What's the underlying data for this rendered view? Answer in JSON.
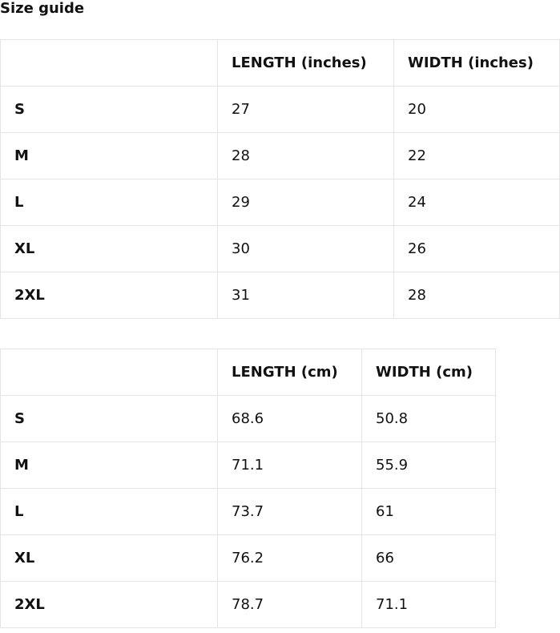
{
  "title": "Size guide",
  "inches_table": {
    "headers": [
      "",
      "LENGTH (inches)",
      "WIDTH (inches)"
    ],
    "rows": [
      [
        "S",
        "27",
        "20"
      ],
      [
        "M",
        "28",
        "22"
      ],
      [
        "L",
        "29",
        "24"
      ],
      [
        "XL",
        "30",
        "26"
      ],
      [
        "2XL",
        "31",
        "28"
      ]
    ]
  },
  "cm_table": {
    "headers": [
      "",
      "LENGTH (cm)",
      "WIDTH (cm)"
    ],
    "rows": [
      [
        "S",
        "68.6",
        "50.8"
      ],
      [
        "M",
        "71.1",
        "55.9"
      ],
      [
        "L",
        "73.7",
        "61"
      ],
      [
        "XL",
        "76.2",
        "66"
      ],
      [
        "2XL",
        "78.7",
        "71.1"
      ]
    ]
  }
}
